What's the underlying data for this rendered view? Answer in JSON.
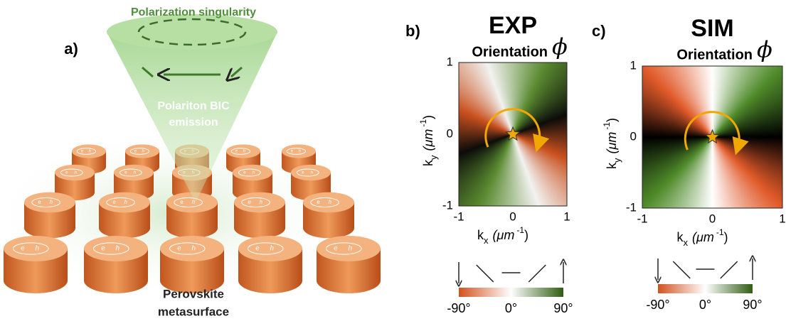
{
  "panel_a": {
    "label": "a)",
    "top_text": "Polarization singularity",
    "beam_text": [
      "Polariton BIC",
      "emission"
    ],
    "bottom_text": [
      "Perovskite",
      "metasurface"
    ],
    "electron": "e",
    "hole": "h"
  },
  "panel_b": {
    "label": "b)",
    "title": "EXP",
    "subtitle": "Orientation",
    "symbol": "ϕ",
    "yticks": [
      1,
      0,
      -1
    ],
    "xticks": [
      -1,
      0,
      1
    ],
    "ylabel": {
      "symbol": "k",
      "sub": "y",
      "unit": "(μm",
      "exp": "-1",
      "close": ")"
    },
    "xlabel": {
      "symbol": "k",
      "sub": "x",
      "unit": "(μm",
      "exp": "-1",
      "close": ")"
    },
    "colorbar": [
      "-90°",
      "0°",
      "90°"
    ]
  },
  "panel_c": {
    "label": "c)",
    "title": "SIM",
    "subtitle": "Orientation",
    "symbol": "ϕ",
    "yticks": [
      1,
      0,
      -1
    ],
    "xticks": [
      -1,
      0,
      1
    ],
    "ylabel": {
      "symbol": "k",
      "sub": "y",
      "unit": "(μm",
      "exp": "-1",
      "close": ")"
    },
    "xlabel": {
      "symbol": "k",
      "sub": "x",
      "unit": "(μm",
      "exp": "-1",
      "close": ")"
    },
    "colorbar": [
      "-90°",
      "0°",
      "90°"
    ]
  }
}
